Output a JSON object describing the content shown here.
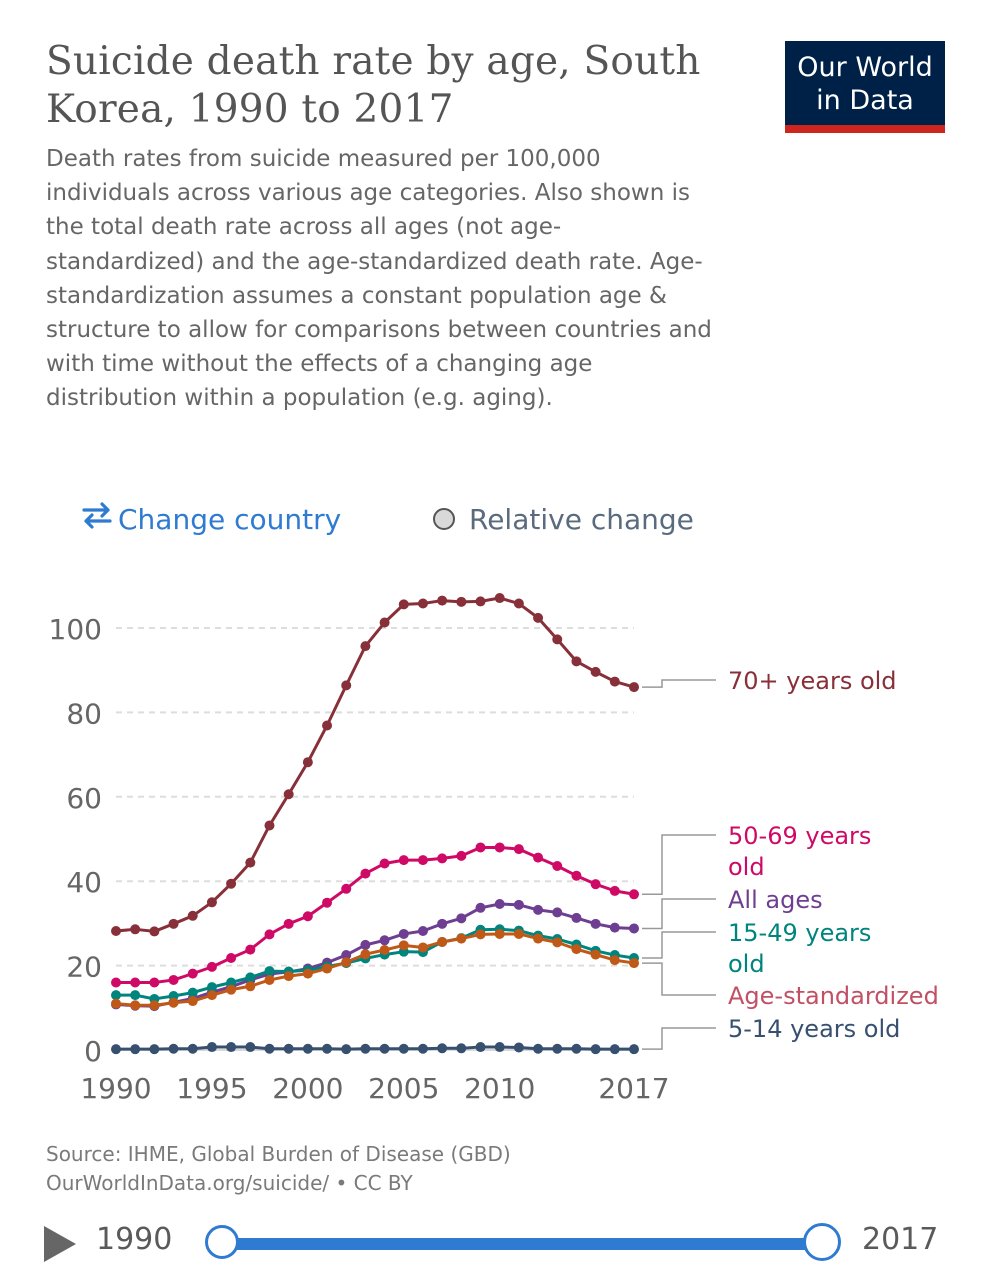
{
  "header": {
    "title": "Suicide death rate by age, South Korea, 1990 to 2017",
    "subtitle": "Death rates from suicide measured per 100,000 individuals across various age categories. Also shown is the total death rate across all ages (not age-standardized) and the age-standardized death rate. Age-standardization assumes a constant population age & structure to allow for comparisons between countries and with time without the effects of a changing age distribution within a population (e.g. aging).",
    "logo_line1": "Our World",
    "logo_line2": "in Data"
  },
  "controls": {
    "change_country": "Change country",
    "relative_change": "Relative change"
  },
  "colors": {
    "accent": "#2f7bd1",
    "logo_bg": "#002147",
    "logo_bar": "#ce261e"
  },
  "chart_data": {
    "type": "line",
    "title": "Suicide death rate by age, South Korea, 1990 to 2017",
    "xlabel": "",
    "ylabel": "",
    "xlim": [
      1990,
      2017
    ],
    "ylim": [
      0,
      110
    ],
    "grid": true,
    "yticks": [
      0,
      20,
      40,
      60,
      80,
      100
    ],
    "xticks": [
      1990,
      1995,
      2000,
      2005,
      2010,
      2017
    ],
    "x": [
      1990,
      1991,
      1992,
      1993,
      1994,
      1995,
      1996,
      1997,
      1998,
      1999,
      2000,
      2001,
      2002,
      2003,
      2004,
      2005,
      2006,
      2007,
      2008,
      2009,
      2010,
      2011,
      2012,
      2013,
      2014,
      2015,
      2016,
      2017
    ],
    "series": [
      {
        "name": "70+ years old",
        "label_lines": [
          "70+ years old"
        ],
        "color": "#883039",
        "values": [
          28.2,
          28.6,
          28.1,
          29.9,
          31.8,
          35.0,
          39.4,
          44.4,
          53.2,
          60.6,
          68.2,
          76.9,
          86.4,
          95.7,
          101.3,
          105.6,
          105.8,
          106.5,
          106.2,
          106.3,
          107.1,
          105.8,
          102.4,
          97.3,
          92.1,
          89.6,
          87.3,
          86.0
        ]
      },
      {
        "name": "50-69 years old",
        "label_lines": [
          "50-69 years",
          "old"
        ],
        "color": "#cf0a66",
        "values": [
          16.0,
          16.0,
          16.0,
          16.6,
          18.1,
          19.7,
          21.8,
          23.8,
          27.4,
          29.9,
          31.7,
          34.9,
          38.2,
          41.8,
          44.2,
          45.0,
          45.0,
          45.4,
          46.0,
          48.0,
          48.0,
          47.6,
          45.6,
          43.6,
          41.3,
          39.3,
          37.7,
          36.9
        ]
      },
      {
        "name": "All ages",
        "label_lines": [
          "All ages"
        ],
        "color": "#6d3e91",
        "values": [
          10.8,
          10.5,
          10.4,
          11.3,
          12.2,
          13.7,
          15.0,
          16.6,
          18.0,
          18.5,
          19.3,
          20.7,
          22.5,
          24.9,
          26.0,
          27.5,
          28.2,
          29.9,
          31.2,
          33.7,
          34.6,
          34.4,
          33.2,
          32.6,
          31.3,
          29.9,
          29.0,
          28.8
        ]
      },
      {
        "name": "15-49 years old",
        "label_lines": [
          "15-49 years",
          "old"
        ],
        "color": "#00847e",
        "values": [
          13.0,
          13.0,
          12.1,
          12.8,
          13.6,
          14.9,
          16.0,
          17.2,
          18.7,
          18.6,
          18.9,
          19.8,
          20.6,
          21.7,
          22.6,
          23.3,
          23.2,
          25.6,
          26.5,
          28.5,
          28.6,
          28.3,
          27.1,
          26.3,
          25.0,
          23.5,
          22.5,
          21.8
        ]
      },
      {
        "name": "Age-standardized",
        "label_lines": [
          "Age-standardized"
        ],
        "color": "#c15065",
        "line_color": "#c05917",
        "values": [
          11.0,
          10.6,
          10.6,
          11.2,
          11.6,
          13.0,
          14.3,
          15.1,
          16.6,
          17.5,
          18.1,
          19.3,
          20.8,
          22.7,
          23.7,
          24.8,
          24.3,
          25.6,
          26.4,
          27.4,
          27.5,
          27.5,
          26.4,
          25.5,
          23.9,
          22.6,
          21.3,
          20.6
        ]
      },
      {
        "name": "5-14 years old",
        "label_lines": [
          "5-14 years old"
        ],
        "color": "#38506f",
        "values": [
          0.2,
          0.2,
          0.2,
          0.3,
          0.3,
          0.7,
          0.7,
          0.7,
          0.3,
          0.3,
          0.3,
          0.3,
          0.2,
          0.3,
          0.3,
          0.3,
          0.3,
          0.4,
          0.4,
          0.7,
          0.7,
          0.6,
          0.3,
          0.3,
          0.3,
          0.2,
          0.2,
          0.2
        ]
      }
    ]
  },
  "footer": {
    "source_line1": "Source: IHME, Global Burden of Disease (GBD)",
    "source_line2": "OurWorldInData.org/suicide/ • CC BY"
  },
  "timeline": {
    "start_year": "1990",
    "end_year": "2017"
  }
}
